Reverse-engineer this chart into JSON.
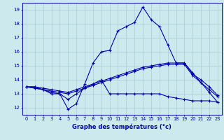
{
  "title": "",
  "xlabel": "Graphe des températures (°c)",
  "ylabel": "",
  "bg_color": "#cce9ee",
  "line_color": "#0000aa",
  "grid_color": "#aaccd4",
  "xlim": [
    -0.5,
    23.5
  ],
  "ylim": [
    11.5,
    19.5
  ],
  "yticks": [
    12,
    13,
    14,
    15,
    16,
    17,
    18,
    19
  ],
  "xticks": [
    0,
    1,
    2,
    3,
    4,
    5,
    6,
    7,
    8,
    9,
    10,
    11,
    12,
    13,
    14,
    15,
    16,
    17,
    18,
    19,
    20,
    21,
    22,
    23
  ],
  "series": [
    [
      13.5,
      13.5,
      13.3,
      13.0,
      13.0,
      11.9,
      12.3,
      13.7,
      15.2,
      16.0,
      16.1,
      17.5,
      17.8,
      18.1,
      19.2,
      18.3,
      17.8,
      16.5,
      15.2,
      15.2,
      14.5,
      13.8,
      13.1,
      12.4
    ],
    [
      13.5,
      13.4,
      13.3,
      13.1,
      13.0,
      12.6,
      13.0,
      13.4,
      13.7,
      14.0,
      13.0,
      13.0,
      13.0,
      13.0,
      13.0,
      13.0,
      13.0,
      12.8,
      12.7,
      12.6,
      12.5,
      12.5,
      12.5,
      12.4
    ],
    [
      13.5,
      13.5,
      13.4,
      13.3,
      13.2,
      13.1,
      13.3,
      13.5,
      13.7,
      13.9,
      14.1,
      14.3,
      14.5,
      14.7,
      14.9,
      15.0,
      15.1,
      15.2,
      15.2,
      15.2,
      14.4,
      14.0,
      13.5,
      12.9
    ],
    [
      13.5,
      13.4,
      13.3,
      13.2,
      13.1,
      13.0,
      13.2,
      13.4,
      13.6,
      13.8,
      14.0,
      14.2,
      14.4,
      14.6,
      14.8,
      14.9,
      15.0,
      15.1,
      15.1,
      15.1,
      14.3,
      13.8,
      13.3,
      12.8
    ]
  ]
}
